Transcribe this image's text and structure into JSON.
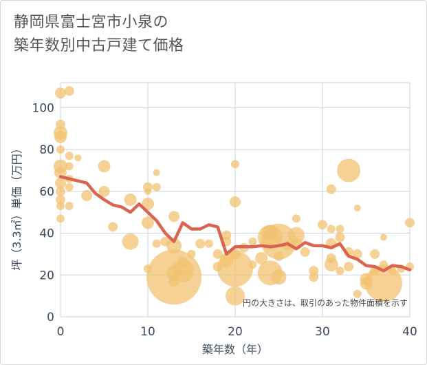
{
  "title_lines": [
    "静岡県富士宮市小泉の",
    "築年数別中古戸建て価格"
  ],
  "chart_data": {
    "type": "scatter",
    "xlabel": "築年数（年）",
    "ylabel": "坪（3.3㎡）単価（万円）",
    "xlim": [
      0,
      40
    ],
    "ylim": [
      0,
      112
    ],
    "xticks": [
      0,
      10,
      20,
      30,
      40
    ],
    "yticks": [
      0,
      20,
      40,
      60,
      80,
      100
    ],
    "grid": true,
    "annotation": "円の大きさは、取引のあった物件面積を示す",
    "bubble_color": "#f2c171",
    "line_color": "#d9644f",
    "points": [
      {
        "x": 0,
        "y": 107,
        "s": 8
      },
      {
        "x": 1,
        "y": 108,
        "s": 7
      },
      {
        "x": 0,
        "y": 92,
        "s": 7
      },
      {
        "x": 0,
        "y": 88,
        "s": 10
      },
      {
        "x": 0,
        "y": 86,
        "s": 9
      },
      {
        "x": 0,
        "y": 80,
        "s": 6
      },
      {
        "x": 0,
        "y": 72,
        "s": 10
      },
      {
        "x": 1,
        "y": 77,
        "s": 6
      },
      {
        "x": 2,
        "y": 76,
        "s": 5
      },
      {
        "x": 0,
        "y": 69,
        "s": 9
      },
      {
        "x": 1,
        "y": 72,
        "s": 6
      },
      {
        "x": 0,
        "y": 64,
        "s": 8
      },
      {
        "x": 1,
        "y": 66,
        "s": 6
      },
      {
        "x": 1,
        "y": 62,
        "s": 6
      },
      {
        "x": 0,
        "y": 60,
        "s": 7
      },
      {
        "x": 0,
        "y": 56,
        "s": 7
      },
      {
        "x": 0,
        "y": 53,
        "s": 6
      },
      {
        "x": 1,
        "y": 53,
        "s": 6
      },
      {
        "x": 0,
        "y": 47,
        "s": 6
      },
      {
        "x": 3,
        "y": 58,
        "s": 8
      },
      {
        "x": 5,
        "y": 72,
        "s": 9
      },
      {
        "x": 5,
        "y": 60,
        "s": 8
      },
      {
        "x": 6,
        "y": 43,
        "s": 7
      },
      {
        "x": 8,
        "y": 56,
        "s": 9
      },
      {
        "x": 8,
        "y": 36,
        "s": 12
      },
      {
        "x": 10,
        "y": 62,
        "s": 7
      },
      {
        "x": 10,
        "y": 60,
        "s": 5
      },
      {
        "x": 11,
        "y": 69,
        "s": 5
      },
      {
        "x": 11,
        "y": 62,
        "s": 6
      },
      {
        "x": 10,
        "y": 54,
        "s": 9
      },
      {
        "x": 10,
        "y": 45,
        "s": 9
      },
      {
        "x": 10,
        "y": 23,
        "s": 6
      },
      {
        "x": 11,
        "y": 35,
        "s": 6
      },
      {
        "x": 12,
        "y": 36,
        "s": 7
      },
      {
        "x": 13,
        "y": 48,
        "s": 8
      },
      {
        "x": 13,
        "y": 34,
        "s": 11
      },
      {
        "x": 13,
        "y": 19,
        "s": 40
      },
      {
        "x": 13,
        "y": 21,
        "s": 11
      },
      {
        "x": 13,
        "y": 17,
        "s": 8
      },
      {
        "x": 14,
        "y": 26,
        "s": 8
      },
      {
        "x": 14,
        "y": 22,
        "s": 16
      },
      {
        "x": 15,
        "y": 30,
        "s": 6
      },
      {
        "x": 16,
        "y": 35,
        "s": 7
      },
      {
        "x": 17,
        "y": 35,
        "s": 6
      },
      {
        "x": 18,
        "y": 30,
        "s": 7
      },
      {
        "x": 18,
        "y": 24,
        "s": 7
      },
      {
        "x": 19,
        "y": 39,
        "s": 7
      },
      {
        "x": 19,
        "y": 36,
        "s": 7
      },
      {
        "x": 19,
        "y": 27,
        "s": 10
      },
      {
        "x": 20,
        "y": 73,
        "s": 6
      },
      {
        "x": 20,
        "y": 55,
        "s": 8
      },
      {
        "x": 20,
        "y": 30,
        "s": 8
      },
      {
        "x": 20,
        "y": 23,
        "s": 26
      },
      {
        "x": 20,
        "y": 10,
        "s": 14
      },
      {
        "x": 21,
        "y": 33,
        "s": 7
      },
      {
        "x": 22,
        "y": 36,
        "s": 6
      },
      {
        "x": 22,
        "y": 25,
        "s": 6
      },
      {
        "x": 23,
        "y": 28,
        "s": 9
      },
      {
        "x": 24,
        "y": 38,
        "s": 18
      },
      {
        "x": 24,
        "y": 40,
        "s": 12
      },
      {
        "x": 24,
        "y": 21,
        "s": 18
      },
      {
        "x": 25,
        "y": 36,
        "s": 26
      },
      {
        "x": 25,
        "y": 29,
        "s": 7
      },
      {
        "x": 25,
        "y": 19,
        "s": 11
      },
      {
        "x": 26,
        "y": 34,
        "s": 7
      },
      {
        "x": 27,
        "y": 47,
        "s": 6
      },
      {
        "x": 27,
        "y": 39,
        "s": 12
      },
      {
        "x": 27,
        "y": 35,
        "s": 9
      },
      {
        "x": 28,
        "y": 31,
        "s": 7
      },
      {
        "x": 29,
        "y": 22,
        "s": 7
      },
      {
        "x": 29,
        "y": 19,
        "s": 7
      },
      {
        "x": 30,
        "y": 44,
        "s": 7
      },
      {
        "x": 31,
        "y": 61,
        "s": 7
      },
      {
        "x": 31,
        "y": 42,
        "s": 6
      },
      {
        "x": 31,
        "y": 35,
        "s": 8
      },
      {
        "x": 31,
        "y": 28,
        "s": 7
      },
      {
        "x": 31,
        "y": 25,
        "s": 10
      },
      {
        "x": 32,
        "y": 42,
        "s": 6
      },
      {
        "x": 32,
        "y": 38,
        "s": 7
      },
      {
        "x": 32,
        "y": 22,
        "s": 6
      },
      {
        "x": 33,
        "y": 70,
        "s": 17
      },
      {
        "x": 33,
        "y": 31,
        "s": 7
      },
      {
        "x": 33,
        "y": 24,
        "s": 7
      },
      {
        "x": 34,
        "y": 52,
        "s": 5
      },
      {
        "x": 34,
        "y": 30,
        "s": 7
      },
      {
        "x": 34,
        "y": 11,
        "s": 6
      },
      {
        "x": 35,
        "y": 18,
        "s": 9
      },
      {
        "x": 35,
        "y": 16,
        "s": 9
      },
      {
        "x": 36,
        "y": 30,
        "s": 7
      },
      {
        "x": 36,
        "y": 22,
        "s": 7
      },
      {
        "x": 37,
        "y": 38,
        "s": 5
      },
      {
        "x": 37,
        "y": 25,
        "s": 6
      },
      {
        "x": 37,
        "y": 16,
        "s": 27
      },
      {
        "x": 38,
        "y": 22,
        "s": 6
      },
      {
        "x": 39,
        "y": 23,
        "s": 6
      },
      {
        "x": 40,
        "y": 45,
        "s": 7
      },
      {
        "x": 40,
        "y": 24,
        "s": 6
      }
    ],
    "trend": {
      "x": [
        0,
        1,
        2,
        3,
        4,
        5,
        6,
        7,
        8,
        9,
        10,
        11,
        12,
        13,
        14,
        15,
        16,
        17,
        18,
        19,
        20,
        21,
        22,
        23,
        24,
        25,
        26,
        27,
        28,
        29,
        30,
        31,
        32,
        33,
        34,
        35,
        36,
        37,
        38,
        39,
        40
      ],
      "y": [
        67,
        66,
        65,
        64,
        59,
        56,
        53.5,
        52.5,
        50,
        54,
        50,
        46,
        40,
        36,
        45,
        42,
        42,
        44,
        43,
        30,
        33.5,
        33.5,
        33.5,
        34,
        33.5,
        34,
        35,
        32.5,
        35.5,
        34,
        34,
        33,
        35,
        29,
        27.5,
        24.5,
        24,
        22,
        24.5,
        24,
        22.5
      ]
    }
  }
}
